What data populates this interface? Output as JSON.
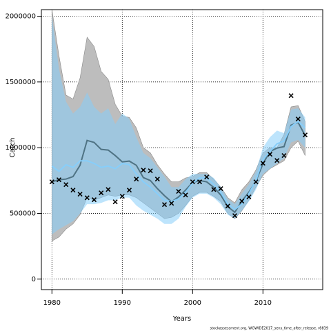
{
  "chart_data": {
    "type": "line",
    "x_label": "Years",
    "y_label": "Catch",
    "footer": "stockassessment.org, WGWIDE2017_sens_time_after_release, r8839",
    "x": [
      1980,
      1981,
      1982,
      1983,
      1984,
      1985,
      1986,
      1987,
      1988,
      1989,
      1990,
      1991,
      1992,
      1993,
      1994,
      1995,
      1996,
      1997,
      1998,
      1999,
      2000,
      2001,
      2002,
      2003,
      2004,
      2005,
      2006,
      2007,
      2008,
      2009,
      2010,
      2011,
      2012,
      2013,
      2014,
      2015,
      2016
    ],
    "xlim": [
      1978.5,
      2018.5
    ],
    "xticks": [
      1980,
      1990,
      2000,
      2010
    ],
    "ylim": [
      -80000,
      2050000
    ],
    "yticks": [
      0,
      500000,
      1000000,
      1500000,
      2000000
    ],
    "grid": true,
    "bands": [
      {
        "color": "#bdbdbd",
        "upper": [
          2050000,
          1700000,
          1400000,
          1370000,
          1530000,
          1840000,
          1770000,
          1580000,
          1520000,
          1330000,
          1240000,
          1230000,
          1150000,
          1000000,
          960000,
          870000,
          800000,
          740000,
          740000,
          770000,
          780000,
          810000,
          810000,
          760000,
          700000,
          620000,
          580000,
          680000,
          740000,
          830000,
          960000,
          1000000,
          1000000,
          1100000,
          1310000,
          1320000,
          1200000
        ],
        "lower": [
          290000,
          320000,
          380000,
          420000,
          490000,
          620000,
          600000,
          620000,
          640000,
          630000,
          640000,
          640000,
          620000,
          580000,
          540000,
          500000,
          460000,
          470000,
          500000,
          560000,
          630000,
          660000,
          660000,
          630000,
          590000,
          500000,
          460000,
          520000,
          600000,
          700000,
          790000,
          840000,
          870000,
          900000,
          1000000,
          1050000,
          940000
        ]
      },
      {
        "color": "#87cefa",
        "upper": [
          2000000,
          1600000,
          1350000,
          1260000,
          1310000,
          1420000,
          1310000,
          1260000,
          1300000,
          1180000,
          1260000,
          1220000,
          1080000,
          960000,
          920000,
          850000,
          780000,
          700000,
          700000,
          760000,
          800000,
          800000,
          800000,
          770000,
          700000,
          610000,
          570000,
          650000,
          720000,
          820000,
          1000000,
          1080000,
          1130000,
          1110000,
          1290000,
          1300000,
          1230000
        ],
        "lower": [
          340000,
          380000,
          410000,
          440000,
          500000,
          570000,
          570000,
          580000,
          600000,
          600000,
          620000,
          620000,
          560000,
          520000,
          490000,
          460000,
          420000,
          420000,
          460000,
          550000,
          620000,
          650000,
          650000,
          620000,
          570000,
          490000,
          460000,
          520000,
          590000,
          680000,
          800000,
          840000,
          880000,
          920000,
          1040000,
          1060000,
          1000000
        ]
      }
    ],
    "series": [
      {
        "color": "#4f7384",
        "values": [
          740000,
          756000,
          761000,
          780000,
          866000,
          1055000,
          1040000,
          987000,
          982000,
          940000,
          892000,
          898000,
          866000,
          772000,
          750000,
          688000,
          635000,
          588000,
          625000,
          677000,
          735000,
          750000,
          740000,
          698000,
          640000,
          551000,
          509000,
          593000,
          661000,
          745000,
          877000,
          971000,
          997000,
          1008000,
          1171000,
          1192000,
          1092000
        ]
      },
      {
        "color": "#87cefa",
        "values": [
          860000,
          820000,
          870000,
          850000,
          900000,
          900000,
          880000,
          850000,
          860000,
          840000,
          880000,
          870000,
          800000,
          740000,
          700000,
          650000,
          600000,
          590000,
          610000,
          660000,
          730000,
          770000,
          770000,
          720000,
          660000,
          570000,
          530000,
          570000,
          650000,
          750000,
          910000,
          970000,
          1030000,
          1050000,
          1160000,
          1200000,
          1150000
        ]
      }
    ],
    "observations": {
      "color": "#000000",
      "values": [
        740000,
        756000,
        719000,
        677000,
        646000,
        619000,
        604000,
        656000,
        682000,
        588000,
        630000,
        677000,
        761000,
        829000,
        824000,
        761000,
        567000,
        577000,
        667000,
        640000,
        740000,
        740000,
        777000,
        682000,
        688000,
        556000,
        483000,
        593000,
        625000,
        740000,
        882000,
        950000,
        903000,
        940000,
        1396000,
        1218000,
        1097000
      ]
    }
  }
}
